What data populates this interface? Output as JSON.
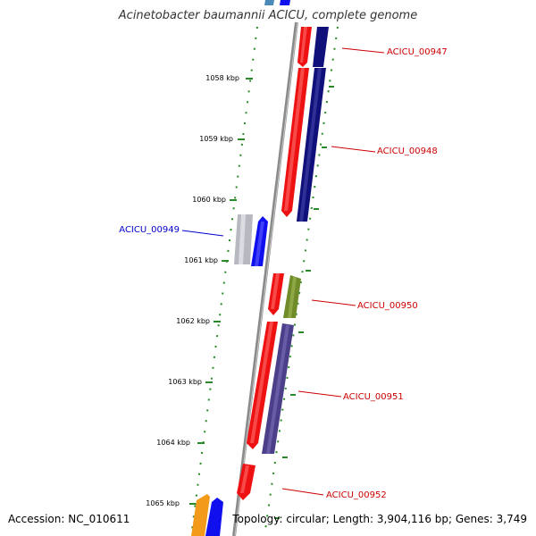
{
  "title": "Acinetobacter baumannii ACICU, complete genome",
  "accession_text": "Accession: NC_010611",
  "summary_text": "Topology: circular; Length: 3,904,116 bp; Genes: 3,749",
  "scale_ticks": [
    "1058 kbp",
    "1059 kbp",
    "1060 kbp",
    "1061 kbp",
    "1062 kbp",
    "1063 kbp",
    "1064 kbp",
    "1065 kbp"
  ],
  "genes": [
    {
      "id": "ACICU_00947",
      "color": "#cc0000"
    },
    {
      "id": "ACICU_00948",
      "color": "#cc0000"
    },
    {
      "id": "ACICU_00949",
      "color": "#0000cc"
    },
    {
      "id": "ACICU_00950",
      "color": "#cc0000"
    },
    {
      "id": "ACICU_00951",
      "color": "#cc0000"
    },
    {
      "id": "ACICU_00952",
      "color": "#cc0000"
    }
  ],
  "colors": {
    "backbone": "#888888",
    "scale_ticks": "#2a8a2a",
    "red_feature": "#ee1111",
    "navy_feature": "#10107a",
    "blue_feature": "#1010ee",
    "gray_feature": "#b8b8c0",
    "olive_feature": "#6f8b2a",
    "purple_feature": "#4b3f8a",
    "orange_feature": "#f39a1a"
  }
}
